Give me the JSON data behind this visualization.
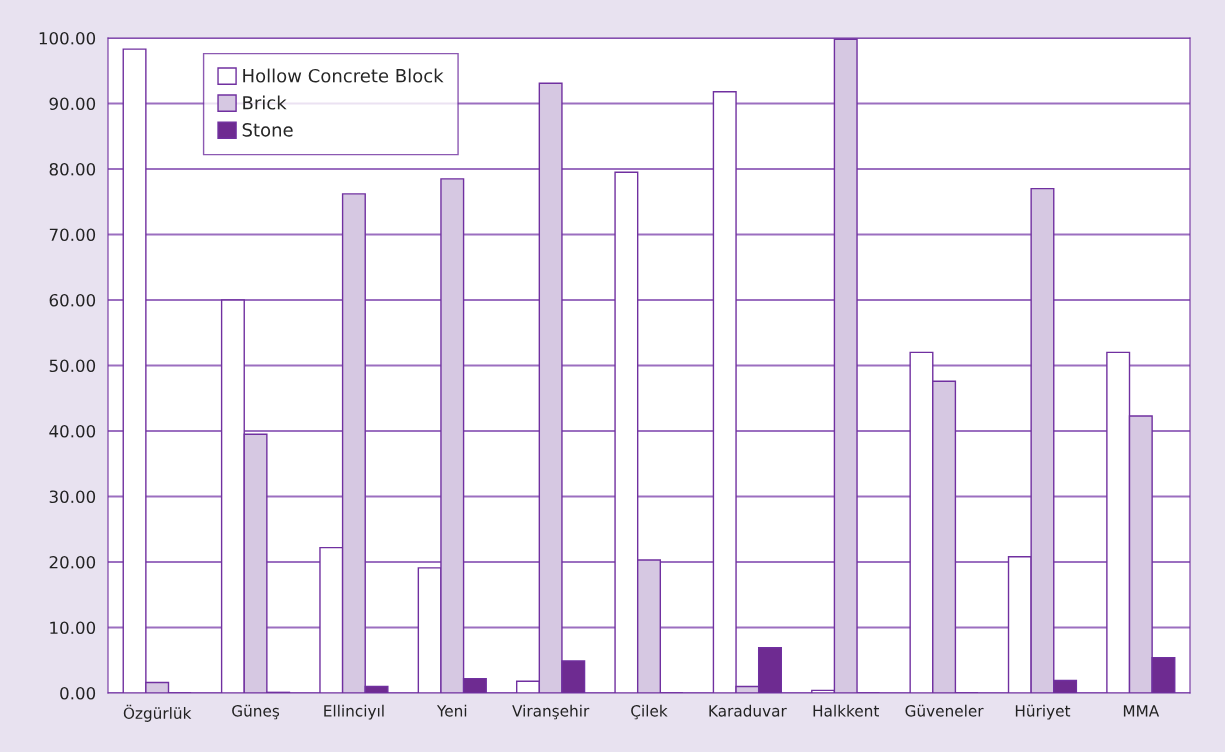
{
  "chart_data": {
    "type": "bar",
    "categories": [
      "Özgürlük",
      "Güneş",
      "Ellinciyıl",
      "Yeni",
      "Viranşehir",
      "Çilek",
      "Karaduvar",
      "Halkkent",
      "Güveneler",
      "Hüriyet",
      "MMA"
    ],
    "series": [
      {
        "name": "Hollow Concrete Block",
        "color": "#ffffff",
        "values": [
          98.3,
          60.0,
          22.2,
          19.1,
          1.8,
          79.5,
          91.8,
          0.4,
          52.0,
          20.8,
          52.0
        ]
      },
      {
        "name": "Brick",
        "color": "#d6c8e2",
        "values": [
          1.6,
          39.5,
          76.2,
          78.5,
          93.1,
          20.3,
          1.0,
          99.8,
          47.6,
          77.0,
          42.3
        ]
      },
      {
        "name": "Stone",
        "color": "#6e2b91",
        "values": [
          0,
          0.1,
          1.0,
          2.2,
          4.9,
          0,
          6.9,
          0,
          0,
          1.9,
          5.4
        ]
      }
    ],
    "ylim": [
      0,
      100
    ],
    "yticks": [
      {
        "value": 0,
        "label": "0.00"
      },
      {
        "value": 10,
        "label": "10.00"
      },
      {
        "value": 20,
        "label": "20.00"
      },
      {
        "value": 30,
        "label": "30.00"
      },
      {
        "value": 40,
        "label": "40.00"
      },
      {
        "value": 50,
        "label": "50.00"
      },
      {
        "value": 60,
        "label": "60.00"
      },
      {
        "value": 70,
        "label": "70.00"
      },
      {
        "value": 80,
        "label": "80.00"
      },
      {
        "value": 90,
        "label": "90.00"
      },
      {
        "value": 100,
        "label": "100.00"
      }
    ],
    "grid": "y",
    "legend": "top left"
  }
}
